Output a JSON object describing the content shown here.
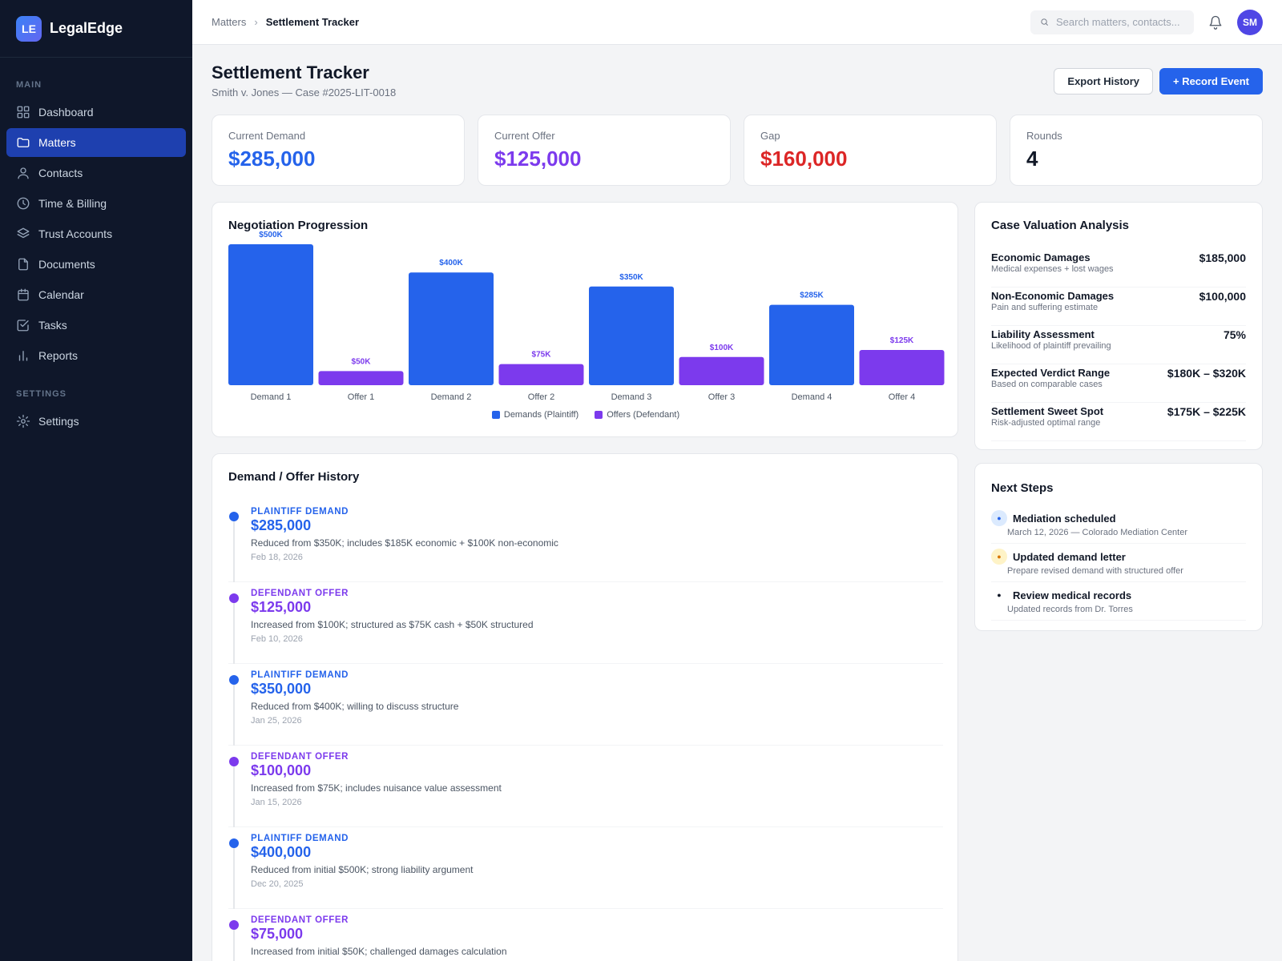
{
  "app": {
    "logo": "LE",
    "name": "LegalEdge"
  },
  "sidebar": {
    "main_label": "MAIN",
    "settings_label": "SETTINGS",
    "items": [
      {
        "label": "Dashboard",
        "icon": "dashboard-icon"
      },
      {
        "label": "Matters",
        "icon": "folder-icon",
        "active": true
      },
      {
        "label": "Contacts",
        "icon": "user-icon"
      },
      {
        "label": "Time & Billing",
        "icon": "clock-icon"
      },
      {
        "label": "Trust Accounts",
        "icon": "layers-icon"
      },
      {
        "label": "Documents",
        "icon": "file-icon"
      },
      {
        "label": "Calendar",
        "icon": "calendar-icon"
      },
      {
        "label": "Tasks",
        "icon": "checkbox-icon"
      },
      {
        "label": "Reports",
        "icon": "bar-chart-icon"
      }
    ],
    "settings_items": [
      {
        "label": "Settings",
        "icon": "gear-icon"
      }
    ]
  },
  "topbar": {
    "breadcrumb": [
      "Matters",
      "Settlement Tracker"
    ],
    "search_placeholder": "Search matters, contacts...",
    "avatar": "SM"
  },
  "page": {
    "title": "Settlement Tracker",
    "subtitle": "Smith v. Jones — Case #2025-LIT-0018",
    "export_label": "Export History",
    "record_label": "+ Record Event"
  },
  "kpis": [
    {
      "label": "Current Demand",
      "value": "$285,000",
      "color": "#2563eb"
    },
    {
      "label": "Current Offer",
      "value": "$125,000",
      "color": "#7c3aed"
    },
    {
      "label": "Gap",
      "value": "$160,000",
      "color": "#dc2626"
    },
    {
      "label": "Rounds",
      "value": "4",
      "color": "#111827"
    }
  ],
  "chart_data": {
    "type": "bar",
    "title": "Negotiation Progression",
    "categories": [
      "Demand 1",
      "Offer 1",
      "Demand 2",
      "Offer 2",
      "Demand 3",
      "Offer 3",
      "Demand 4",
      "Offer 4"
    ],
    "values": [
      500,
      50,
      400,
      75,
      350,
      100,
      285,
      125
    ],
    "value_labels": [
      "$500K",
      "$50K",
      "$400K",
      "$75K",
      "$350K",
      "$100K",
      "$285K",
      "$125K"
    ],
    "series_of_bar": [
      "demand",
      "offer",
      "demand",
      "offer",
      "demand",
      "offer",
      "demand",
      "offer"
    ],
    "series": [
      {
        "key": "demand",
        "name": "Demands (Plaintiff)",
        "color": "#2563eb"
      },
      {
        "key": "offer",
        "name": "Offers (Defendant)",
        "color": "#7c3aed"
      }
    ],
    "ylim": [
      0,
      500
    ],
    "grid": false,
    "legend": "bottom-center"
  },
  "history": {
    "title": "Demand / Offer History",
    "items": [
      {
        "type": "PLAINTIFF DEMAND",
        "amount": "$285,000",
        "note": "Reduced from $350K; includes $185K economic + $100K non-economic",
        "date": "Feb 18, 2026",
        "color": "#2563eb"
      },
      {
        "type": "DEFENDANT OFFER",
        "amount": "$125,000",
        "note": "Increased from $100K; structured as $75K cash + $50K structured",
        "date": "Feb 10, 2026",
        "color": "#7c3aed"
      },
      {
        "type": "PLAINTIFF DEMAND",
        "amount": "$350,000",
        "note": "Reduced from $400K; willing to discuss structure",
        "date": "Jan 25, 2026",
        "color": "#2563eb"
      },
      {
        "type": "DEFENDANT OFFER",
        "amount": "$100,000",
        "note": "Increased from $75K; includes nuisance value assessment",
        "date": "Jan 15, 2026",
        "color": "#7c3aed"
      },
      {
        "type": "PLAINTIFF DEMAND",
        "amount": "$400,000",
        "note": "Reduced from initial $500K; strong liability argument",
        "date": "Dec 20, 2025",
        "color": "#2563eb"
      },
      {
        "type": "DEFENDANT OFFER",
        "amount": "$75,000",
        "note": "Increased from initial $50K; challenged damages calculation",
        "date": "",
        "color": "#7c3aed"
      }
    ]
  },
  "valuation": {
    "title": "Case Valuation Analysis",
    "rows": [
      {
        "name": "Economic Damages",
        "desc": "Medical expenses + lost wages",
        "value": "$185,000"
      },
      {
        "name": "Non-Economic Damages",
        "desc": "Pain and suffering estimate",
        "value": "$100,000"
      },
      {
        "name": "Liability Assessment",
        "desc": "Likelihood of plaintiff prevailing",
        "value": "75%"
      },
      {
        "name": "Expected Verdict Range",
        "desc": "Based on comparable cases",
        "value": "$180K – $320K"
      },
      {
        "name": "Settlement Sweet Spot",
        "desc": "Risk-adjusted optimal range",
        "value": "$175K – $225K"
      }
    ]
  },
  "next_steps": {
    "title": "Next Steps",
    "items": [
      {
        "title": "Mediation scheduled",
        "sub": "March 12, 2026 — Colorado Mediation Center",
        "icon_bg": "#dbeafe",
        "icon_color": "#2563eb"
      },
      {
        "title": "Updated demand letter",
        "sub": "Prepare revised demand with structured offer",
        "icon_bg": "#fef3c7",
        "icon_color": "#d97706"
      },
      {
        "title": "Review medical records",
        "sub": "Updated records from Dr. Torres",
        "icon_bg": "#ffffff",
        "icon_color": "#111827"
      }
    ]
  }
}
